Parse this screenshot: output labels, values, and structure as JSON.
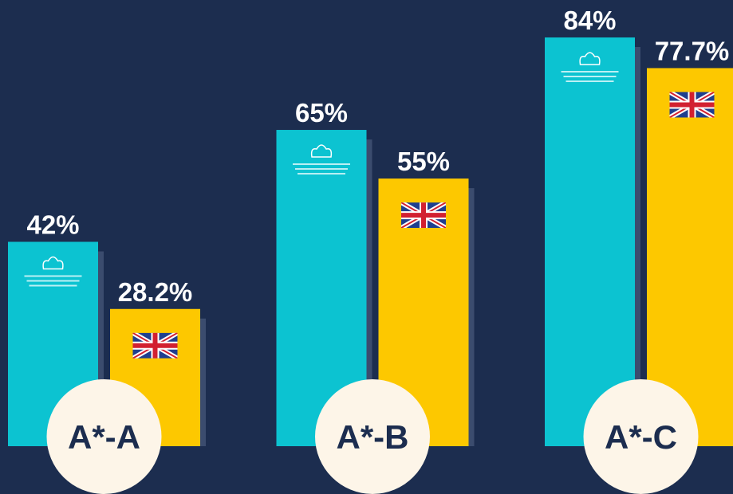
{
  "chart_data": {
    "type": "bar",
    "categories": [
      "A*-A",
      "A*-B",
      "A*-C"
    ],
    "series": [
      {
        "color": "#0cc3d1",
        "values": [
          42,
          65,
          84
        ],
        "value_labels": [
          "42%",
          "65%",
          "84%"
        ]
      },
      {
        "color": "#fdc800",
        "values": [
          28.2,
          55,
          77.7
        ],
        "value_labels": [
          "28.2%",
          "55%",
          "77.7%"
        ]
      }
    ]
  }
}
